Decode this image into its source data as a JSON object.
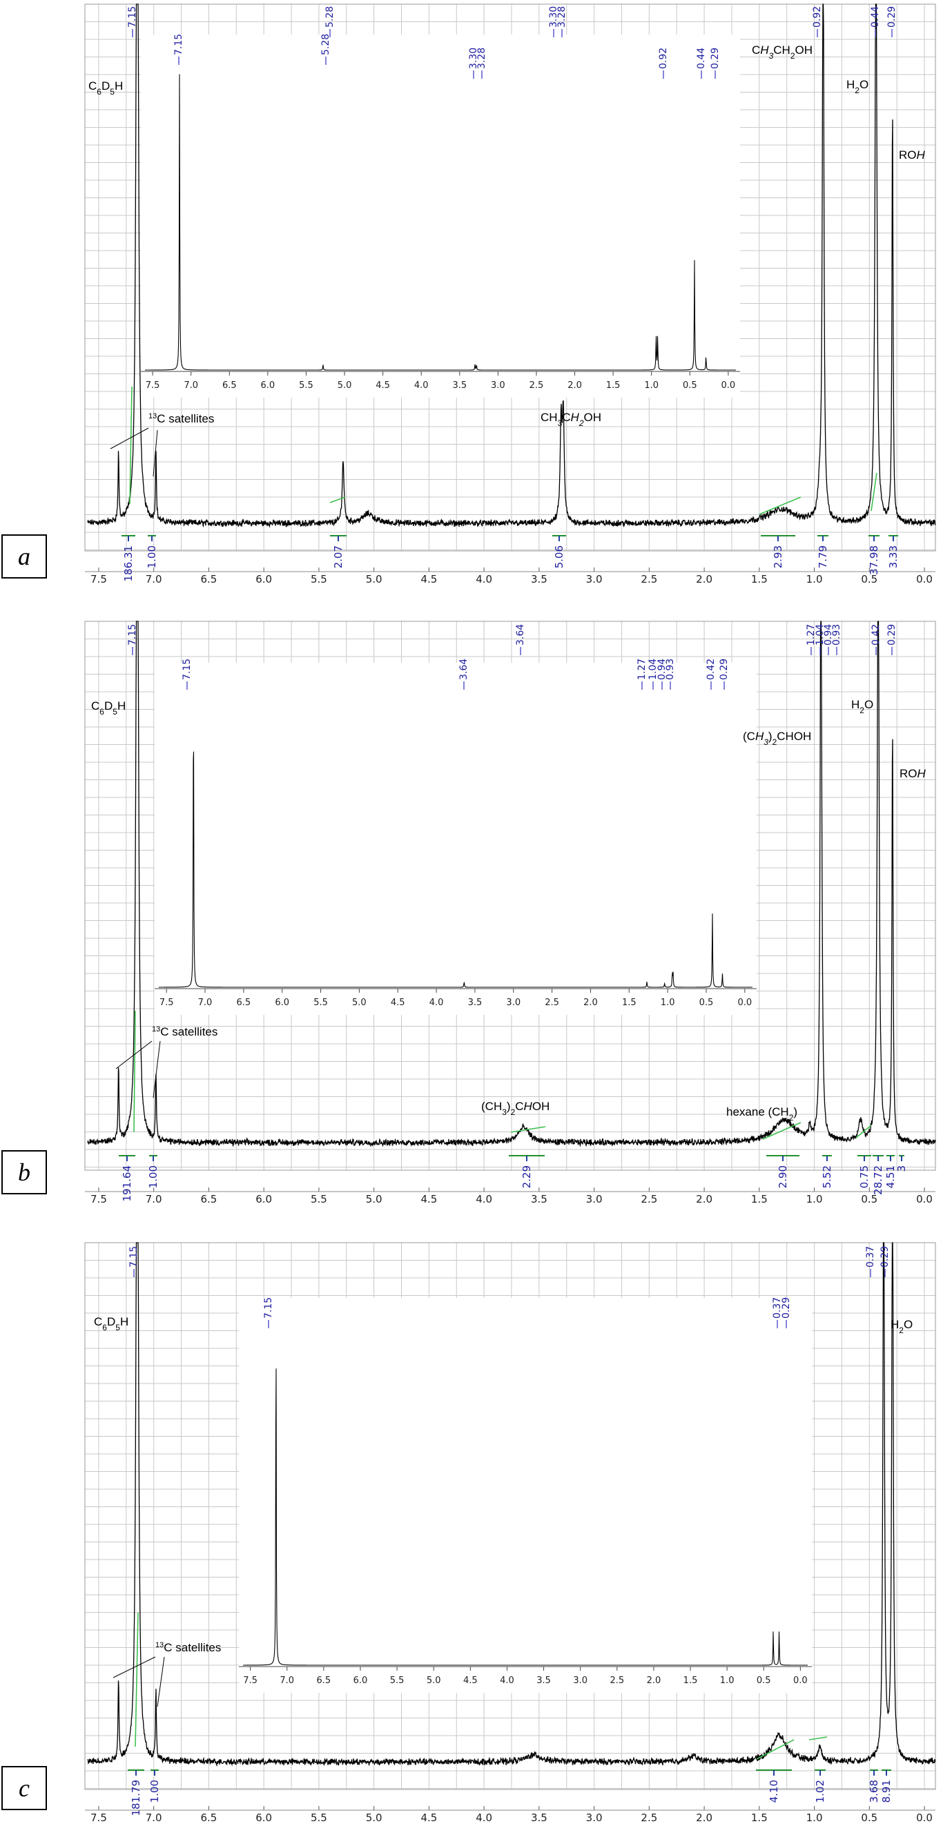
{
  "panels": [
    {
      "id": "a",
      "label": "a",
      "peak_labels": [
        "7.15",
        "7.15",
        "5.28",
        "5.28",
        "3.30",
        "3.28",
        "3.30",
        "3.28",
        "0.92",
        "0.44",
        "0.29",
        "0.92",
        "0.44",
        "0.29"
      ],
      "annotations": {
        "solvent": "C6D5H",
        "satellites": "13C satellites",
        "ch2": "CH3CH2OH",
        "ch3": "CH3CH2OH",
        "water": "H2O",
        "roh": "ROH"
      },
      "integrals": [
        "186.31",
        "1.00",
        "2.07",
        "5.06",
        "2.93",
        "7.79",
        "37.98",
        "3.33"
      ]
    },
    {
      "id": "b",
      "label": "b",
      "peak_labels": [
        "7.15",
        "7.15",
        "3.64",
        "3.64",
        "1.27",
        "1.04",
        "0.94",
        "0.93",
        "0.42",
        "0.29",
        "1.27",
        "1.04",
        "0.94",
        "0.93",
        "0.42",
        "0.29"
      ],
      "annotations": {
        "solvent": "C6D5H",
        "satellites": "13C satellites",
        "ch": "(CH3)2CHOH",
        "ch3": "(CH3)2CHOH",
        "hexane": "hexane (CH2)",
        "water": "H2O",
        "roh": "ROH"
      },
      "integrals": [
        "191.64",
        "1.00",
        "2.29",
        "2.90",
        "5.52",
        "0.75",
        "28.72",
        "4.51",
        "3"
      ]
    },
    {
      "id": "c",
      "label": "c",
      "peak_labels": [
        "7.15",
        "7.15",
        "0.37",
        "0.29",
        "0.37",
        "0.29"
      ],
      "annotations": {
        "solvent": "C6D5H",
        "satellites": "13C satellites",
        "water": "H2O"
      },
      "integrals": [
        "181.79",
        "1.00",
        "4.10",
        "1.02",
        "3.68",
        "8.91"
      ]
    }
  ],
  "chart_data": [
    {
      "type": "line",
      "panel": "a",
      "x_axis_ticks": [
        "7.5",
        "7.0",
        "6.5",
        "6.0",
        "5.5",
        "5.0",
        "4.5",
        "4.0",
        "3.5",
        "3.0",
        "2.5",
        "2.0",
        "1.5",
        "1.0",
        "0.5",
        "0.0"
      ],
      "xlim": [
        7.6,
        -0.1
      ],
      "peaks_ppm": [
        7.32,
        7.15,
        6.98,
        5.28,
        3.3,
        3.28,
        0.92,
        0.44,
        0.29
      ],
      "inset": {
        "xlim": [
          7.6,
          -0.1
        ],
        "peaks_ppm": [
          7.15,
          5.28,
          3.3,
          3.28,
          0.92,
          0.44,
          0.29
        ]
      }
    },
    {
      "type": "line",
      "panel": "b",
      "x_axis_ticks": [
        "7.5",
        "7.0",
        "6.5",
        "6.0",
        "5.5",
        "5.0",
        "4.5",
        "4.0",
        "3.5",
        "3.0",
        "2.5",
        "2.0",
        "1.5",
        "1.0",
        "0.5",
        "0.0"
      ],
      "xlim": [
        7.6,
        -0.1
      ],
      "peaks_ppm": [
        7.32,
        7.15,
        6.98,
        3.64,
        1.27,
        1.04,
        0.94,
        0.93,
        0.42,
        0.29
      ],
      "inset": {
        "xlim": [
          7.6,
          -0.1
        ],
        "peaks_ppm": [
          7.15,
          3.64,
          1.27,
          1.04,
          0.94,
          0.93,
          0.42,
          0.29
        ]
      }
    },
    {
      "type": "line",
      "panel": "c",
      "x_axis_ticks": [
        "7.5",
        "7.0",
        "6.5",
        "6.0",
        "5.5",
        "5.0",
        "4.5",
        "4.0",
        "3.5",
        "3.0",
        "2.5",
        "2.0",
        "1.5",
        "1.0",
        "0.5",
        "0.0"
      ],
      "xlim": [
        7.6,
        -0.1
      ],
      "peaks_ppm": [
        7.32,
        7.15,
        6.98,
        0.37,
        0.29
      ],
      "inset": {
        "xlim": [
          7.6,
          -0.1
        ],
        "peaks_ppm": [
          7.15,
          0.37,
          0.29
        ]
      }
    }
  ]
}
